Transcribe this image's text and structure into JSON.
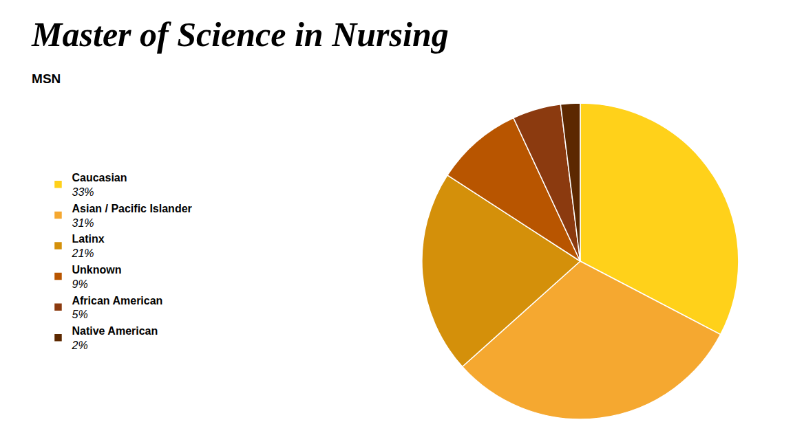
{
  "chart_data": {
    "type": "pie",
    "title": "Master of Science in Nursing",
    "subtitle": "MSN",
    "categories": [
      "Caucasian",
      "Asian / Pacific Islander",
      "Latinx",
      "Unknown",
      "African American",
      "Native American"
    ],
    "values": [
      33,
      31,
      21,
      9,
      5,
      2
    ],
    "value_labels": [
      "33%",
      "31%",
      "21%",
      "9%",
      "5%",
      "2%"
    ],
    "colors": [
      "#FFD11A",
      "#F5A830",
      "#D4900A",
      "#B85500",
      "#8B3A0F",
      "#5C2800"
    ],
    "legend": "left"
  }
}
